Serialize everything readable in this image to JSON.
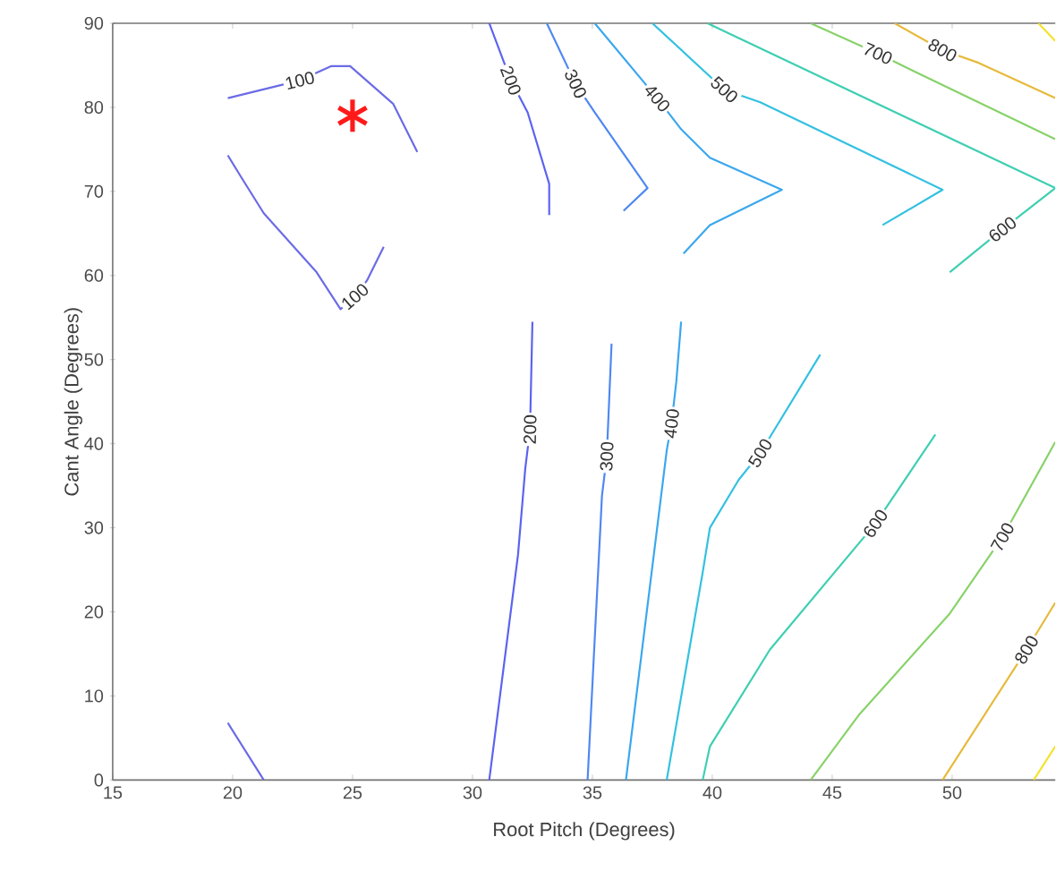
{
  "chart_data": {
    "type": "line",
    "xlabel": "Root Pitch (Degrees)",
    "ylabel": "Cant Angle (Degrees)",
    "xlim": [
      15,
      54.3
    ],
    "xticks": [
      15,
      20,
      25,
      30,
      35,
      40,
      45,
      50
    ],
    "ylim": [
      0,
      90
    ],
    "yticks": [
      0,
      10,
      20,
      30,
      40,
      50,
      60,
      70,
      80,
      90
    ],
    "grid": false,
    "marker": "none",
    "line_style": "solid",
    "series": [
      {
        "color": "#6b6be6",
        "x": [
          19.8,
          22.8,
          24.1,
          24.9,
          26.7,
          27.7,
          null,
          19.8,
          20.4,
          21.3,
          23.5,
          24.5,
          25.1,
          25.6,
          26.3,
          null,
          19.8,
          21.3
        ],
        "values": [
          81.1,
          83.2,
          84.9,
          84.9,
          80.4,
          74.7,
          null,
          74.3,
          71.5,
          67.4,
          60.4,
          56.0,
          57.5,
          59.4,
          63.4,
          null,
          6.8,
          0
        ]
      },
      {
        "color": "#5b63f0",
        "x": [
          30.7,
          31.6,
          32.3,
          33.2,
          33.2,
          null,
          32.5,
          32.4,
          32.2,
          31.9,
          30.7
        ],
        "values": [
          90,
          83.2,
          79.4,
          70.9,
          67.2,
          null,
          54.5,
          41.7,
          37,
          26.8,
          0
        ]
      },
      {
        "color": "#4f88f2",
        "x": [
          33.1,
          34.3,
          35.1,
          37.3,
          36.3,
          null,
          35.8,
          35.6,
          35.4,
          34.8
        ],
        "values": [
          90,
          82.8,
          79.4,
          70.4,
          67.7,
          null,
          51.9,
          38.5,
          33.8,
          0
        ]
      },
      {
        "color": "#3ba7ee",
        "x": [
          35.1,
          37.7,
          38.7,
          39.9,
          42.9,
          39.9,
          38.8,
          null,
          38.7,
          38.5,
          38.3,
          38.1,
          36.4
        ],
        "values": [
          90,
          81.1,
          77.4,
          74.0,
          70.2,
          66,
          62.6,
          null,
          54.5,
          47.4,
          42.4,
          39.2,
          0
        ]
      },
      {
        "color": "#33c1e0",
        "x": [
          37.5,
          40.5,
          42.0,
          49.6,
          47.1,
          null,
          44.5,
          42.0,
          41.1,
          39.9,
          39.6,
          38.1
        ],
        "values": [
          90,
          82.1,
          80.6,
          70.2,
          66,
          null,
          50.6,
          38.9,
          35.7,
          30.0,
          24.7,
          0
        ]
      },
      {
        "color": "#3ecfb2",
        "x": [
          39.8,
          54.3,
          52.1,
          49.9,
          null,
          49.3,
          46.8,
          42.4,
          39.9,
          39.6
        ],
        "values": [
          90,
          70.4,
          65.5,
          60.4,
          null,
          41.1,
          30.5,
          15.5,
          4.0,
          0
        ]
      },
      {
        "color": "#88d26a",
        "x": [
          44.1,
          46.9,
          48.4,
          54.3,
          null,
          54.3,
          52.1,
          49.9,
          46.1,
          44.1
        ],
        "values": [
          90,
          86.4,
          84.3,
          76.2,
          null,
          40.2,
          28.9,
          19.8,
          7.7,
          0
        ]
      },
      {
        "color": "#e6ba3c",
        "x": [
          47.6,
          49.6,
          51.1,
          54.3,
          null,
          54.3,
          53.1,
          49.6
        ],
        "values": [
          90,
          86.8,
          85.3,
          81.1,
          null,
          21.1,
          15.5,
          0
        ]
      },
      {
        "color": "#f4e22c",
        "x": [
          53.6,
          54.3,
          null,
          53.4,
          54.3
        ],
        "values": [
          90,
          87.9,
          null,
          0,
          4.0
        ]
      },
      {
        "type": "scatter",
        "marker": "cross",
        "color": "#ff1a1a",
        "x": [
          25
        ],
        "values": [
          79
        ]
      }
    ],
    "annotations": [
      {
        "text": "100",
        "x": 22.8,
        "y": 83.2
      },
      {
        "text": "100",
        "x": 25.1,
        "y": 57.5
      },
      {
        "text": "200",
        "x": 31.6,
        "y": 83.2
      },
      {
        "text": "200",
        "x": 32.4,
        "y": 41.7
      },
      {
        "text": "300",
        "x": 34.3,
        "y": 82.8
      },
      {
        "text": "300",
        "x": 35.6,
        "y": 38.5
      },
      {
        "text": "400",
        "x": 37.7,
        "y": 81.1
      },
      {
        "text": "400",
        "x": 38.3,
        "y": 42.4
      },
      {
        "text": "500",
        "x": 40.5,
        "y": 82.1
      },
      {
        "text": "500",
        "x": 42.0,
        "y": 38.9
      },
      {
        "text": "600",
        "x": 52.1,
        "y": 65.5
      },
      {
        "text": "600",
        "x": 46.8,
        "y": 30.5
      },
      {
        "text": "700",
        "x": 46.9,
        "y": 86.4
      },
      {
        "text": "700",
        "x": 52.1,
        "y": 28.9
      },
      {
        "text": "800",
        "x": 49.6,
        "y": 86.8
      },
      {
        "text": "800",
        "x": 53.1,
        "y": 15.5
      }
    ]
  }
}
